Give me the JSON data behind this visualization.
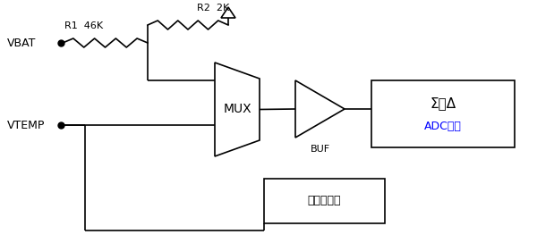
{
  "fig_width": 6.0,
  "fig_height": 2.72,
  "dpi": 100,
  "bg_color": "#ffffff",
  "line_color": "#000000",
  "line_width": 1.2,
  "vbat_label": "VBAT",
  "vtemp_label": "VTEMP",
  "r1_label": "R1  46K",
  "r2_label": "R2  2K",
  "mux_label": "MUX",
  "buf_label": "BUF",
  "adc_line1": "Σ－Δ",
  "adc_line2": "ADC模块",
  "temp_label": "温度传感器",
  "adc_color1": "#000000",
  "adc_color2": "#0000ff"
}
